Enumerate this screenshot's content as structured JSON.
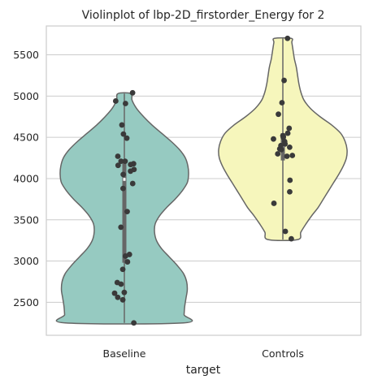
{
  "chart_data": {
    "type": "violin",
    "title": "Violinplot of lbp-2D_firstorder_Energy for 2",
    "xlabel": "target",
    "ylabel": "",
    "categories": [
      "Baseline",
      "Controls"
    ],
    "ylim": [
      2100,
      5850
    ],
    "yticks": [
      2500,
      3000,
      3500,
      4000,
      4500,
      5000,
      5500
    ],
    "ytick_labels": [
      "2500",
      "3000",
      "3500",
      "4000",
      "4500",
      "5000",
      "5500"
    ],
    "grid": "horizontal",
    "colors": {
      "Baseline": "#96cac1",
      "Controls": "#f6f6bc",
      "outline": "#666666",
      "points": "#3a3a3a",
      "grid": "#cccccc",
      "axes": "#cccccc"
    },
    "violins": [
      {
        "category": "Baseline",
        "range": [
          2250,
          5030
        ],
        "median": 3990,
        "q1": 2980,
        "q3": 4220,
        "profile": [
          [
            2250,
            0.92
          ],
          [
            2350,
            0.93
          ],
          [
            2450,
            0.94
          ],
          [
            2550,
            0.96
          ],
          [
            2650,
            0.98
          ],
          [
            2750,
            0.97
          ],
          [
            2850,
            0.92
          ],
          [
            2950,
            0.82
          ],
          [
            3050,
            0.7
          ],
          [
            3150,
            0.58
          ],
          [
            3250,
            0.5
          ],
          [
            3350,
            0.47
          ],
          [
            3450,
            0.48
          ],
          [
            3550,
            0.55
          ],
          [
            3650,
            0.66
          ],
          [
            3750,
            0.79
          ],
          [
            3850,
            0.9
          ],
          [
            3950,
            0.98
          ],
          [
            4050,
            1.0
          ],
          [
            4150,
            0.99
          ],
          [
            4250,
            0.95
          ],
          [
            4350,
            0.86
          ],
          [
            4450,
            0.73
          ],
          [
            4550,
            0.58
          ],
          [
            4650,
            0.43
          ],
          [
            4750,
            0.3
          ],
          [
            4850,
            0.19
          ],
          [
            4950,
            0.12
          ],
          [
            5030,
            0.1
          ]
        ],
        "points": [
          5040,
          4940,
          4910,
          4650,
          4540,
          4490,
          4270,
          4210,
          4210,
          4180,
          4170,
          4160,
          4110,
          4090,
          4050,
          3940,
          3880,
          3600,
          3410,
          3080,
          3060,
          2990,
          2900,
          2740,
          2720,
          2620,
          2610,
          2560,
          2530,
          2250
        ]
      },
      {
        "category": "Controls",
        "range": [
          3260,
          5700
        ],
        "median": 4400,
        "q1": 4220,
        "q3": 4550,
        "profile": [
          [
            3260,
            0.23
          ],
          [
            3350,
            0.28
          ],
          [
            3450,
            0.36
          ],
          [
            3550,
            0.45
          ],
          [
            3650,
            0.55
          ],
          [
            3750,
            0.63
          ],
          [
            3850,
            0.71
          ],
          [
            3950,
            0.79
          ],
          [
            4050,
            0.87
          ],
          [
            4150,
            0.94
          ],
          [
            4250,
            0.99
          ],
          [
            4350,
            1.0
          ],
          [
            4450,
            0.97
          ],
          [
            4550,
            0.9
          ],
          [
            4650,
            0.76
          ],
          [
            4750,
            0.58
          ],
          [
            4850,
            0.43
          ],
          [
            4950,
            0.33
          ],
          [
            5050,
            0.28
          ],
          [
            5150,
            0.25
          ],
          [
            5250,
            0.23
          ],
          [
            5350,
            0.21
          ],
          [
            5450,
            0.18
          ],
          [
            5550,
            0.16
          ],
          [
            5650,
            0.14
          ],
          [
            5700,
            0.13
          ]
        ],
        "points": [
          5700,
          5190,
          4920,
          4780,
          4610,
          4550,
          4520,
          4510,
          4500,
          4480,
          4450,
          4420,
          4400,
          4380,
          4360,
          4350,
          4300,
          4280,
          4270,
          3980,
          3840,
          3700,
          3360,
          3270
        ]
      }
    ]
  }
}
